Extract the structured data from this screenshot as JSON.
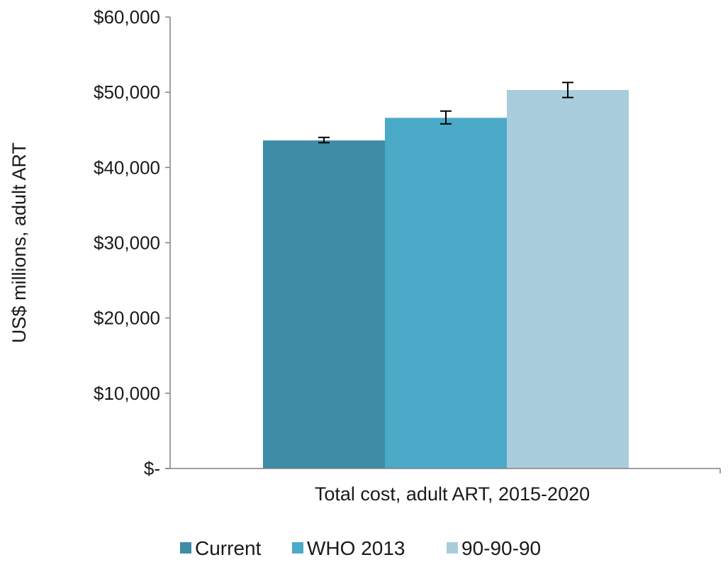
{
  "chart_data": {
    "type": "bar",
    "categories": [
      "Total cost, adult ART, 2015-2020"
    ],
    "series": [
      {
        "name": "Current",
        "value": 43600,
        "err_low": 43300,
        "err_high": 44000,
        "color": "#3e8ca5"
      },
      {
        "name": "WHO 2013",
        "value": 46600,
        "err_low": 45800,
        "err_high": 47500,
        "color": "#4baac8"
      },
      {
        "name": "90-90-90",
        "value": 50300,
        "err_low": 49300,
        "err_high": 51300,
        "color": "#a9cddc"
      }
    ],
    "title": "",
    "xlabel": "",
    "ylabel": "US$ millions, adult ART",
    "ylim": [
      0,
      60000
    ],
    "yticks": [
      0,
      10000,
      20000,
      30000,
      40000,
      50000,
      60000
    ],
    "ytick_labels": [
      "$-",
      "$10,000",
      "$20,000",
      "$30,000",
      "$40,000",
      "$50,000",
      "$60,000"
    ],
    "grid": false,
    "legend": "bottom"
  }
}
